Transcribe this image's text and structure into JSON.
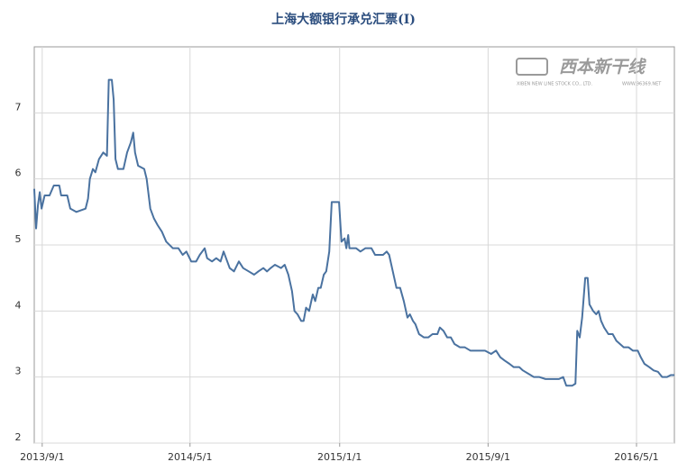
{
  "chart_data": {
    "type": "line",
    "title": "上海大额银行承兑汇票(Ⅰ)",
    "watermark": {
      "brand": "西本新干线",
      "company": "XIBEN NEW LINE STOCK CO., LTD.",
      "site": "WWW.96369.NET"
    },
    "color": "#4a72a0",
    "grid": true,
    "xlim": [
      "2013-08-19",
      "2016-07-02"
    ],
    "xticks": [
      {
        "value": "2013-09-01",
        "label": "2013/9/1"
      },
      {
        "value": "2014-05-01",
        "label": "2014/5/1"
      },
      {
        "value": "2015-01-01",
        "label": "2015/1/1"
      },
      {
        "value": "2015-09-01",
        "label": "2015/9/1"
      },
      {
        "value": "2016-05-01",
        "label": "2016/5/1"
      }
    ],
    "ylim": [
      2,
      8
    ],
    "yticks": [
      2,
      3,
      4,
      5,
      6,
      7
    ],
    "x": [
      "2013-08-19",
      "2013-08-22",
      "2013-08-25",
      "2013-08-28",
      "2013-08-31",
      "2013-09-05",
      "2013-09-13",
      "2013-09-20",
      "2013-09-29",
      "2013-10-02",
      "2013-10-12",
      "2013-10-17",
      "2013-10-27",
      "2013-11-11",
      "2013-11-15",
      "2013-11-18",
      "2013-11-23",
      "2013-11-27",
      "2013-12-03",
      "2013-12-10",
      "2013-12-16",
      "2013-12-19",
      "2013-12-24",
      "2013-12-27",
      "2013-12-30",
      "2014-01-03",
      "2014-01-12",
      "2014-01-18",
      "2014-01-24",
      "2014-01-28",
      "2014-01-31",
      "2014-02-05",
      "2014-02-15",
      "2014-02-19",
      "2014-02-25",
      "2014-03-03",
      "2014-03-09",
      "2014-03-16",
      "2014-03-23",
      "2014-04-03",
      "2014-04-12",
      "2014-04-19",
      "2014-04-25",
      "2014-05-03",
      "2014-05-11",
      "2014-05-17",
      "2014-05-25",
      "2014-05-29",
      "2014-06-06",
      "2014-06-13",
      "2014-06-20",
      "2014-06-25",
      "2014-06-29",
      "2014-07-05",
      "2014-07-12",
      "2014-07-20",
      "2014-07-27",
      "2014-08-05",
      "2014-08-14",
      "2014-08-21",
      "2014-08-29",
      "2014-09-04",
      "2014-09-10",
      "2014-09-17",
      "2014-09-27",
      "2014-10-03",
      "2014-10-09",
      "2014-10-15",
      "2014-10-19",
      "2014-10-24",
      "2014-10-30",
      "2014-11-03",
      "2014-11-07",
      "2014-11-12",
      "2014-11-18",
      "2014-11-22",
      "2014-11-27",
      "2014-12-01",
      "2014-12-06",
      "2014-12-10",
      "2014-12-15",
      "2014-12-19",
      "2014-12-26",
      "2014-12-31",
      "2015-01-04",
      "2015-01-09",
      "2015-01-12",
      "2015-01-15",
      "2015-01-17",
      "2015-01-28",
      "2015-02-04",
      "2015-02-12",
      "2015-02-22",
      "2015-02-28",
      "2015-03-13",
      "2015-03-19",
      "2015-03-23",
      "2015-03-29",
      "2015-04-04",
      "2015-04-10",
      "2015-04-16",
      "2015-04-22",
      "2015-04-26",
      "2015-05-01",
      "2015-05-05",
      "2015-05-11",
      "2015-05-19",
      "2015-05-26",
      "2015-06-02",
      "2015-06-10",
      "2015-06-14",
      "2015-06-20",
      "2015-06-26",
      "2015-07-02",
      "2015-07-08",
      "2015-07-17",
      "2015-07-25",
      "2015-08-03",
      "2015-08-15",
      "2015-08-27",
      "2015-09-06",
      "2015-09-14",
      "2015-09-21",
      "2015-09-28",
      "2015-10-06",
      "2015-10-13",
      "2015-10-22",
      "2015-10-28",
      "2015-11-06",
      "2015-11-15",
      "2015-11-24",
      "2015-12-04",
      "2015-12-14",
      "2015-12-26",
      "2016-01-02",
      "2016-01-07",
      "2016-01-17",
      "2016-01-22",
      "2016-01-25",
      "2016-01-29",
      "2016-02-02",
      "2016-02-07",
      "2016-02-11",
      "2016-02-14",
      "2016-02-20",
      "2016-02-25",
      "2016-02-29",
      "2016-03-04",
      "2016-03-09",
      "2016-03-16",
      "2016-03-23",
      "2016-03-29",
      "2016-04-04",
      "2016-04-10",
      "2016-04-18",
      "2016-04-25",
      "2016-05-03",
      "2016-05-08",
      "2016-05-14",
      "2016-05-22",
      "2016-05-29",
      "2016-06-05",
      "2016-06-12",
      "2016-06-20",
      "2016-06-26",
      "2016-07-02"
    ],
    "values": [
      5.85,
      5.25,
      5.6,
      5.8,
      5.55,
      5.75,
      5.75,
      5.9,
      5.9,
      5.75,
      5.75,
      5.55,
      5.5,
      5.55,
      5.7,
      6.0,
      6.15,
      6.1,
      6.3,
      6.4,
      6.35,
      7.5,
      7.5,
      7.2,
      6.3,
      6.15,
      6.15,
      6.4,
      6.55,
      6.7,
      6.4,
      6.2,
      6.15,
      6.0,
      5.55,
      5.4,
      5.3,
      5.2,
      5.05,
      4.95,
      4.95,
      4.85,
      4.9,
      4.75,
      4.75,
      4.85,
      4.95,
      4.8,
      4.75,
      4.8,
      4.75,
      4.9,
      4.8,
      4.65,
      4.6,
      4.75,
      4.65,
      4.6,
      4.55,
      4.6,
      4.65,
      4.6,
      4.65,
      4.7,
      4.65,
      4.7,
      4.55,
      4.3,
      4.0,
      3.95,
      3.85,
      3.85,
      4.05,
      4.0,
      4.25,
      4.15,
      4.35,
      4.35,
      4.55,
      4.6,
      4.9,
      5.65,
      5.65,
      5.65,
      5.05,
      5.1,
      4.95,
      5.15,
      4.95,
      4.95,
      4.9,
      4.95,
      4.95,
      4.85,
      4.85,
      4.9,
      4.85,
      4.6,
      4.35,
      4.35,
      4.15,
      3.9,
      3.95,
      3.85,
      3.8,
      3.65,
      3.6,
      3.6,
      3.65,
      3.65,
      3.75,
      3.7,
      3.6,
      3.6,
      3.5,
      3.45,
      3.45,
      3.4,
      3.4,
      3.4,
      3.35,
      3.4,
      3.3,
      3.25,
      3.2,
      3.15,
      3.15,
      3.1,
      3.05,
      3.0,
      3.0,
      2.97,
      2.97,
      2.97,
      3.0,
      2.87,
      2.87,
      2.9,
      3.7,
      3.6,
      3.9,
      4.5,
      4.5,
      4.1,
      4.0,
      3.95,
      4.0,
      3.85,
      3.75,
      3.65,
      3.65,
      3.55,
      3.5,
      3.45,
      3.45,
      3.4,
      3.4,
      3.3,
      3.2,
      3.15,
      3.1,
      3.08,
      3.0,
      3.0,
      3.03,
      3.03
    ]
  }
}
